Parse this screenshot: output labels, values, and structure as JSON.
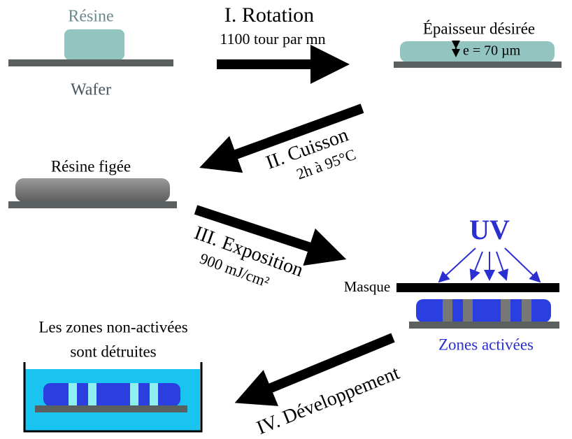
{
  "resin_stage": {
    "resin_label": "Résine",
    "wafer_label": "Wafer"
  },
  "thickness_stage": {
    "label": "Épaisseur désirée",
    "thickness": "e = 70 µm"
  },
  "baked_stage": {
    "label": "Résine figée"
  },
  "exposure_stage": {
    "uv_label": "UV",
    "mask_label": "Masque",
    "active_label": "Zones activées"
  },
  "development_stage": {
    "label_line1": "Les zones non-activées",
    "label_line2": "sont détruites"
  },
  "steps": [
    {
      "title": "I. Rotation",
      "detail": "1100 tour par mn"
    },
    {
      "title": "II. Cuisson",
      "detail": "2h à 95°C"
    },
    {
      "title": "III. Exposition",
      "detail": "900 mJ/cm²"
    },
    {
      "title": "IV. Développement"
    }
  ]
}
